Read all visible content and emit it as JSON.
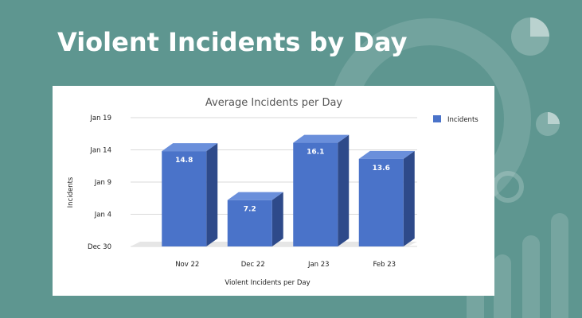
{
  "slide": {
    "title": "Violent Incidents by Day"
  },
  "colors": {
    "background": "#5e9690",
    "bar_front": "#4a73c9",
    "bar_side": "#2e4a8a",
    "bar_top": "#6a8fdb"
  },
  "chart_data": {
    "type": "bar",
    "title": "Average Incidents per Day",
    "xlabel": "Violent Incidents per Day",
    "ylabel": "Incidents",
    "categories": [
      "Nov 22",
      "Dec 22",
      "Jan 23",
      "Feb 23"
    ],
    "series": [
      {
        "name": "Incidents",
        "values": [
          14.8,
          7.2,
          16.1,
          13.6
        ],
        "value_labels": [
          "14.8",
          "7.2",
          "16.1",
          "13.6"
        ]
      }
    ],
    "y_tick_labels": [
      "Dec 30",
      "Jan 4",
      "Jan 9",
      "Jan 14",
      "Jan 19"
    ],
    "ylim": [
      0,
      20
    ],
    "grid": true,
    "legend": "right"
  }
}
